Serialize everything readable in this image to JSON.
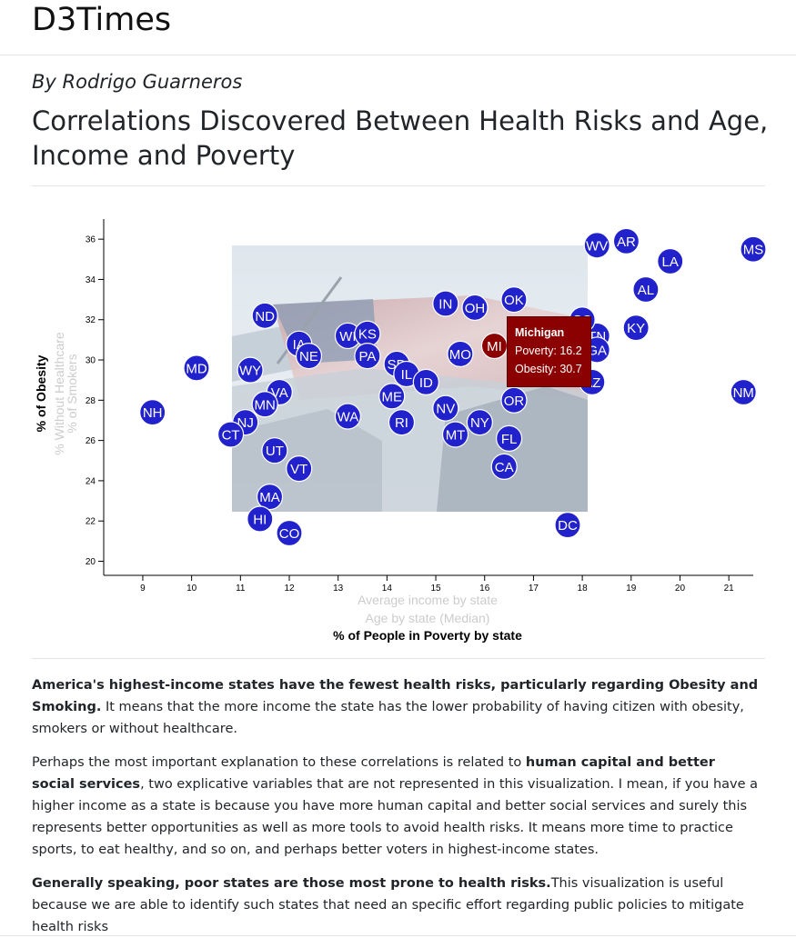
{
  "brand": "D3Times",
  "byline": "By Rodrigo Guarneros",
  "headline": "Correlations Discovered Between Health Risks and Age, Income and Poverty",
  "chart_data": {
    "type": "scatter",
    "x_axis_labels": {
      "inactive_1": "Average income by state",
      "inactive_2": "Age by state (Median)",
      "active": "% of People in Poverty by state"
    },
    "y_axis_labels": {
      "active": "% of Obesity",
      "inactive_1": "% Without Healthcare",
      "inactive_2": "% of Smokers"
    },
    "xlim": [
      8.2,
      21.5
    ],
    "ylim": [
      19.3,
      37.0
    ],
    "xticks": [
      9,
      10,
      11,
      12,
      13,
      14,
      15,
      16,
      17,
      18,
      19,
      20,
      21
    ],
    "yticks": [
      20,
      22,
      24,
      26,
      28,
      30,
      32,
      34,
      36
    ],
    "colors": {
      "point": "#2222cc",
      "highlight": "#8b0000",
      "label": "#ffffff",
      "inactive_label": "#cccccc"
    },
    "highlighted": "MI",
    "points": [
      {
        "abbr": "MS",
        "x": 21.5,
        "y": 35.5
      },
      {
        "abbr": "AR",
        "x": 18.9,
        "y": 35.9
      },
      {
        "abbr": "WV",
        "x": 18.3,
        "y": 35.7
      },
      {
        "abbr": "LA",
        "x": 19.8,
        "y": 34.9
      },
      {
        "abbr": "AL",
        "x": 19.3,
        "y": 33.5
      },
      {
        "abbr": "KY",
        "x": 19.1,
        "y": 31.6
      },
      {
        "abbr": "TN",
        "x": 18.3,
        "y": 31.2
      },
      {
        "abbr": "GA",
        "x": 18.3,
        "y": 30.5
      },
      {
        "abbr": "AZ",
        "x": 18.2,
        "y": 28.9
      },
      {
        "abbr": "NM",
        "x": 21.3,
        "y": 28.4
      },
      {
        "abbr": "SC",
        "x": 18.0,
        "y": 32.0
      },
      {
        "abbr": "OK",
        "x": 16.6,
        "y": 33.0
      },
      {
        "abbr": "IN",
        "x": 15.2,
        "y": 32.8
      },
      {
        "abbr": "OH",
        "x": 15.8,
        "y": 32.6
      },
      {
        "abbr": "MI",
        "x": 16.2,
        "y": 30.7
      },
      {
        "abbr": "MO",
        "x": 15.5,
        "y": 30.3
      },
      {
        "abbr": "ND",
        "x": 11.5,
        "y": 32.2
      },
      {
        "abbr": "WI",
        "x": 13.2,
        "y": 31.2
      },
      {
        "abbr": "KS",
        "x": 13.6,
        "y": 31.3
      },
      {
        "abbr": "IA",
        "x": 12.2,
        "y": 30.8
      },
      {
        "abbr": "NE",
        "x": 12.4,
        "y": 30.2
      },
      {
        "abbr": "PA",
        "x": 13.6,
        "y": 30.2
      },
      {
        "abbr": "SD",
        "x": 14.2,
        "y": 29.8
      },
      {
        "abbr": "IL",
        "x": 14.4,
        "y": 29.3
      },
      {
        "abbr": "ID",
        "x": 14.8,
        "y": 28.9
      },
      {
        "abbr": "MD",
        "x": 10.1,
        "y": 29.6
      },
      {
        "abbr": "WY",
        "x": 11.2,
        "y": 29.5
      },
      {
        "abbr": "VA",
        "x": 11.8,
        "y": 28.4
      },
      {
        "abbr": "ME",
        "x": 14.1,
        "y": 28.2
      },
      {
        "abbr": "MN",
        "x": 11.5,
        "y": 27.8
      },
      {
        "abbr": "NH",
        "x": 9.2,
        "y": 27.4
      },
      {
        "abbr": "NJ",
        "x": 11.1,
        "y": 26.9
      },
      {
        "abbr": "CT",
        "x": 10.8,
        "y": 26.3
      },
      {
        "abbr": "WA",
        "x": 13.2,
        "y": 27.2
      },
      {
        "abbr": "RI",
        "x": 14.3,
        "y": 26.9
      },
      {
        "abbr": "NV",
        "x": 15.2,
        "y": 27.6
      },
      {
        "abbr": "NY",
        "x": 15.9,
        "y": 26.9
      },
      {
        "abbr": "MT",
        "x": 15.4,
        "y": 26.3
      },
      {
        "abbr": "OR",
        "x": 16.6,
        "y": 28.0
      },
      {
        "abbr": "FL",
        "x": 16.5,
        "y": 26.1
      },
      {
        "abbr": "UT",
        "x": 11.7,
        "y": 25.5
      },
      {
        "abbr": "VT",
        "x": 12.2,
        "y": 24.6
      },
      {
        "abbr": "CA",
        "x": 16.4,
        "y": 24.7
      },
      {
        "abbr": "MA",
        "x": 11.6,
        "y": 23.2
      },
      {
        "abbr": "HI",
        "x": 11.4,
        "y": 22.1
      },
      {
        "abbr": "CO",
        "x": 12.0,
        "y": 21.4
      },
      {
        "abbr": "DC",
        "x": 17.7,
        "y": 21.8
      }
    ]
  },
  "tooltip": {
    "state": "Michigan",
    "poverty": "Poverty: 16.2",
    "obesity": "Obesity: 30.7"
  },
  "paragraphs": {
    "p1_bold": "America's highest-income states have the fewest health risks, particularly regarding Obesity and Smoking.",
    "p1_rest": " It means that the more income the state has the lower probability of having citizen with obesity, smokers or without healthcare.",
    "p2_start": "Perhaps the most important explanation to these correlations is related to ",
    "p2_bold": "human capital and better social services",
    "p2_rest": ", two explicative variables that are not represented in this visualization. I mean, if you have a higher income as a state is because you have more human capital and better social services and surely this represents better opportunities as well as more tools to avoid health risks. It means more time to practice sports, to eat healthy, and so on, and perhaps better voters in highest-income states.",
    "p3_bold": "Generally speaking, poor states are those most prone to health risks.",
    "p3_rest": "This visualization is useful because we are able to identify such states that need an specific effort regarding public policies to mitigate health risks"
  }
}
